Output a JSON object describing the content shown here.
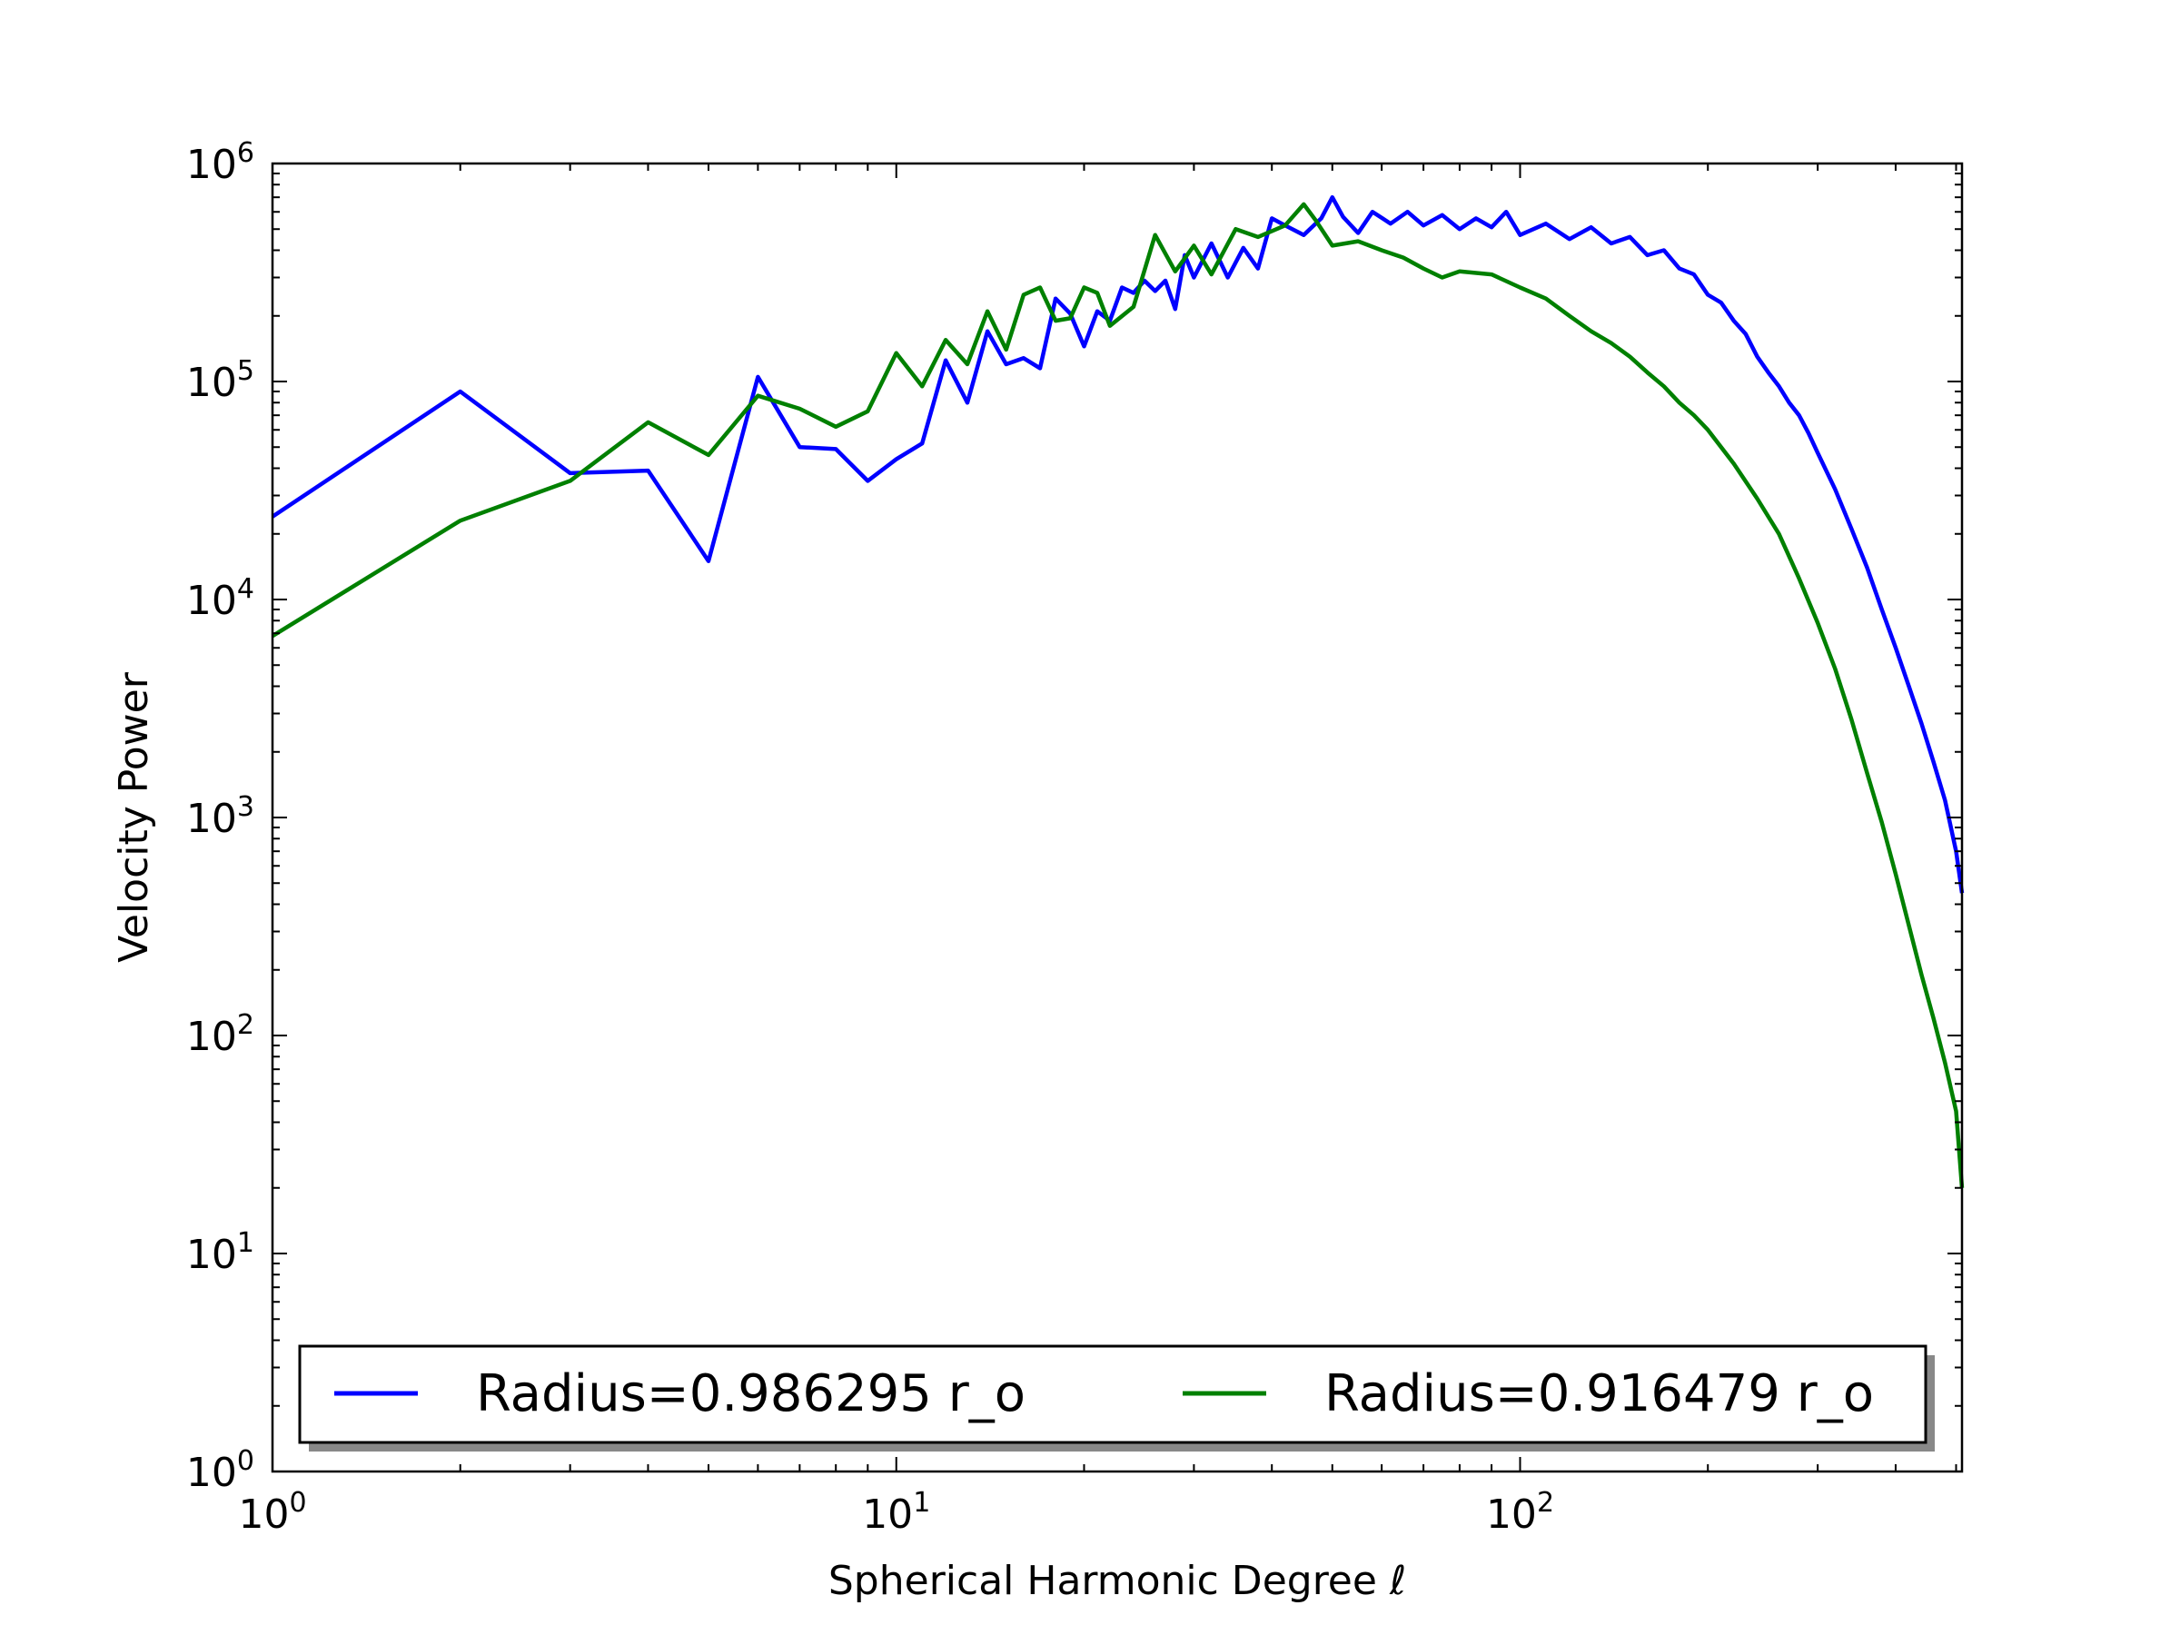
{
  "chart_data": {
    "type": "line",
    "title": "",
    "xlabel": "Spherical Harmonic Degree ℓ",
    "ylabel": "Velocity Power",
    "xscale": "log",
    "yscale": "log",
    "xlim": [
      1,
      511
    ],
    "ylim": [
      1,
      1000000
    ],
    "x_ticks": [
      {
        "value": 1,
        "base": "10",
        "exp": "0"
      },
      {
        "value": 10,
        "base": "10",
        "exp": "1"
      },
      {
        "value": 100,
        "base": "10",
        "exp": "2"
      }
    ],
    "y_ticks": [
      {
        "value": 1,
        "base": "10",
        "exp": "0"
      },
      {
        "value": 10,
        "base": "10",
        "exp": "1"
      },
      {
        "value": 100,
        "base": "10",
        "exp": "2"
      },
      {
        "value": 1000,
        "base": "10",
        "exp": "3"
      },
      {
        "value": 10000,
        "base": "10",
        "exp": "4"
      },
      {
        "value": 100000,
        "base": "10",
        "exp": "5"
      },
      {
        "value": 1000000,
        "base": "10",
        "exp": "6"
      }
    ],
    "grid": false,
    "legend": {
      "placement": "bottom",
      "columns": 2
    },
    "series": [
      {
        "name": "Radius=0.986295 r_o",
        "color": "#0000ff",
        "points": [
          [
            1,
            24000
          ],
          [
            2,
            90000
          ],
          [
            3,
            38000
          ],
          [
            4,
            39000
          ],
          [
            5,
            15000
          ],
          [
            6,
            105000
          ],
          [
            7,
            50000
          ],
          [
            8,
            49000
          ],
          [
            9,
            35000
          ],
          [
            10,
            44000
          ],
          [
            11,
            52000
          ],
          [
            12,
            125000
          ],
          [
            13,
            80000
          ],
          [
            14,
            170000
          ],
          [
            15,
            120000
          ],
          [
            16,
            128000
          ],
          [
            17,
            115000
          ],
          [
            18,
            240000
          ],
          [
            19,
            205000
          ],
          [
            20,
            145000
          ],
          [
            21,
            210000
          ],
          [
            22,
            190000
          ],
          [
            23,
            270000
          ],
          [
            24,
            255000
          ],
          [
            25,
            290000
          ],
          [
            26,
            260000
          ],
          [
            27,
            290000
          ],
          [
            28,
            215000
          ],
          [
            29,
            380000
          ],
          [
            30,
            300000
          ],
          [
            32,
            430000
          ],
          [
            34,
            300000
          ],
          [
            36,
            410000
          ],
          [
            38,
            330000
          ],
          [
            40,
            560000
          ],
          [
            42,
            520000
          ],
          [
            45,
            470000
          ],
          [
            48,
            560000
          ],
          [
            50,
            700000
          ],
          [
            52,
            570000
          ],
          [
            55,
            480000
          ],
          [
            58,
            600000
          ],
          [
            62,
            530000
          ],
          [
            66,
            600000
          ],
          [
            70,
            520000
          ],
          [
            75,
            580000
          ],
          [
            80,
            500000
          ],
          [
            85,
            560000
          ],
          [
            90,
            510000
          ],
          [
            95,
            600000
          ],
          [
            100,
            470000
          ],
          [
            110,
            530000
          ],
          [
            120,
            450000
          ],
          [
            130,
            510000
          ],
          [
            140,
            430000
          ],
          [
            150,
            460000
          ],
          [
            160,
            380000
          ],
          [
            170,
            400000
          ],
          [
            180,
            330000
          ],
          [
            190,
            310000
          ],
          [
            200,
            250000
          ],
          [
            210,
            230000
          ],
          [
            220,
            190000
          ],
          [
            230,
            165000
          ],
          [
            240,
            130000
          ],
          [
            250,
            110000
          ],
          [
            260,
            95000
          ],
          [
            270,
            80000
          ],
          [
            280,
            70000
          ],
          [
            290,
            58000
          ],
          [
            300,
            47000
          ],
          [
            320,
            32000
          ],
          [
            340,
            21000
          ],
          [
            360,
            14000
          ],
          [
            380,
            9000
          ],
          [
            400,
            6000
          ],
          [
            420,
            4000
          ],
          [
            440,
            2700
          ],
          [
            460,
            1800
          ],
          [
            480,
            1200
          ],
          [
            500,
            700
          ],
          [
            511,
            450
          ]
        ]
      },
      {
        "name": "Radius=0.916479 r_o",
        "color": "#008000",
        "points": [
          [
            1,
            6800
          ],
          [
            2,
            23000
          ],
          [
            3,
            35000
          ],
          [
            4,
            65000
          ],
          [
            5,
            46000
          ],
          [
            6,
            86000
          ],
          [
            7,
            75000
          ],
          [
            8,
            62000
          ],
          [
            9,
            73000
          ],
          [
            10,
            135000
          ],
          [
            11,
            95000
          ],
          [
            12,
            155000
          ],
          [
            13,
            120000
          ],
          [
            14,
            210000
          ],
          [
            15,
            140000
          ],
          [
            16,
            250000
          ],
          [
            17,
            270000
          ],
          [
            18,
            190000
          ],
          [
            19,
            195000
          ],
          [
            20,
            270000
          ],
          [
            21,
            255000
          ],
          [
            22,
            180000
          ],
          [
            24,
            220000
          ],
          [
            26,
            470000
          ],
          [
            28,
            320000
          ],
          [
            30,
            420000
          ],
          [
            32,
            310000
          ],
          [
            35,
            500000
          ],
          [
            38,
            460000
          ],
          [
            42,
            520000
          ],
          [
            45,
            650000
          ],
          [
            47,
            550000
          ],
          [
            50,
            420000
          ],
          [
            55,
            440000
          ],
          [
            60,
            400000
          ],
          [
            65,
            370000
          ],
          [
            70,
            330000
          ],
          [
            75,
            300000
          ],
          [
            80,
            320000
          ],
          [
            90,
            310000
          ],
          [
            100,
            270000
          ],
          [
            110,
            240000
          ],
          [
            120,
            200000
          ],
          [
            130,
            170000
          ],
          [
            140,
            150000
          ],
          [
            150,
            130000
          ],
          [
            160,
            110000
          ],
          [
            170,
            95000
          ],
          [
            180,
            80000
          ],
          [
            190,
            70000
          ],
          [
            200,
            60000
          ],
          [
            220,
            42000
          ],
          [
            240,
            29000
          ],
          [
            260,
            20000
          ],
          [
            280,
            12500
          ],
          [
            300,
            7800
          ],
          [
            320,
            4800
          ],
          [
            340,
            2800
          ],
          [
            360,
            1600
          ],
          [
            380,
            950
          ],
          [
            400,
            550
          ],
          [
            420,
            320
          ],
          [
            440,
            190
          ],
          [
            460,
            120
          ],
          [
            480,
            75
          ],
          [
            500,
            45
          ],
          [
            511,
            20
          ]
        ]
      }
    ]
  }
}
